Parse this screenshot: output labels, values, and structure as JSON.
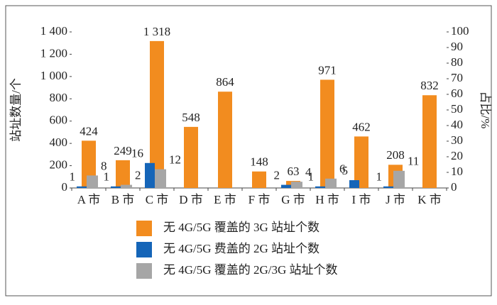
{
  "chart_data": {
    "type": "bar",
    "y_label": "站址数量/个",
    "y2_label": "占比/%",
    "categories": [
      "A 市",
      "B 市",
      "C 市",
      "D 市",
      "E 市",
      "F 市",
      "G 市",
      "H 市",
      "I 市",
      "J 市",
      "K 市"
    ],
    "series": [
      {
        "name": "无 4G/5G 覆盖的 3G 站址个数",
        "color": "#f28c1f",
        "values": [
          424,
          249,
          1318,
          548,
          864,
          148,
          63,
          971,
          462,
          208,
          832
        ],
        "value_labels": [
          "424",
          "249",
          "1 318",
          "548",
          "864",
          "148",
          "63",
          "971",
          "462",
          "208",
          "832"
        ]
      },
      {
        "name": "无 4G/5G 费盖的 2G 站址个数",
        "color": "#1565b8",
        "axis": "y2",
        "values": [
          1,
          1,
          16,
          null,
          null,
          null,
          2,
          1,
          5,
          1,
          null
        ]
      },
      {
        "name": "无 4G/5G 覆盖的 2G/3G 站址个数",
        "color": "#a6a6a6",
        "axis": "y2",
        "values": [
          8,
          2,
          12,
          null,
          null,
          null,
          4,
          6,
          null,
          11,
          null
        ]
      }
    ],
    "ylim": [
      0,
      1400
    ],
    "yticks": [
      0,
      200,
      400,
      600,
      800,
      {
        "value": 1000,
        "label": "1 000"
      },
      {
        "value": 1200,
        "label": "1 200"
      },
      {
        "value": 1400,
        "label": "1 400"
      }
    ],
    "y2lim": [
      0,
      100
    ],
    "y2ticks": [
      0,
      10,
      20,
      30,
      40,
      50,
      60,
      70,
      80,
      90,
      100
    ]
  }
}
